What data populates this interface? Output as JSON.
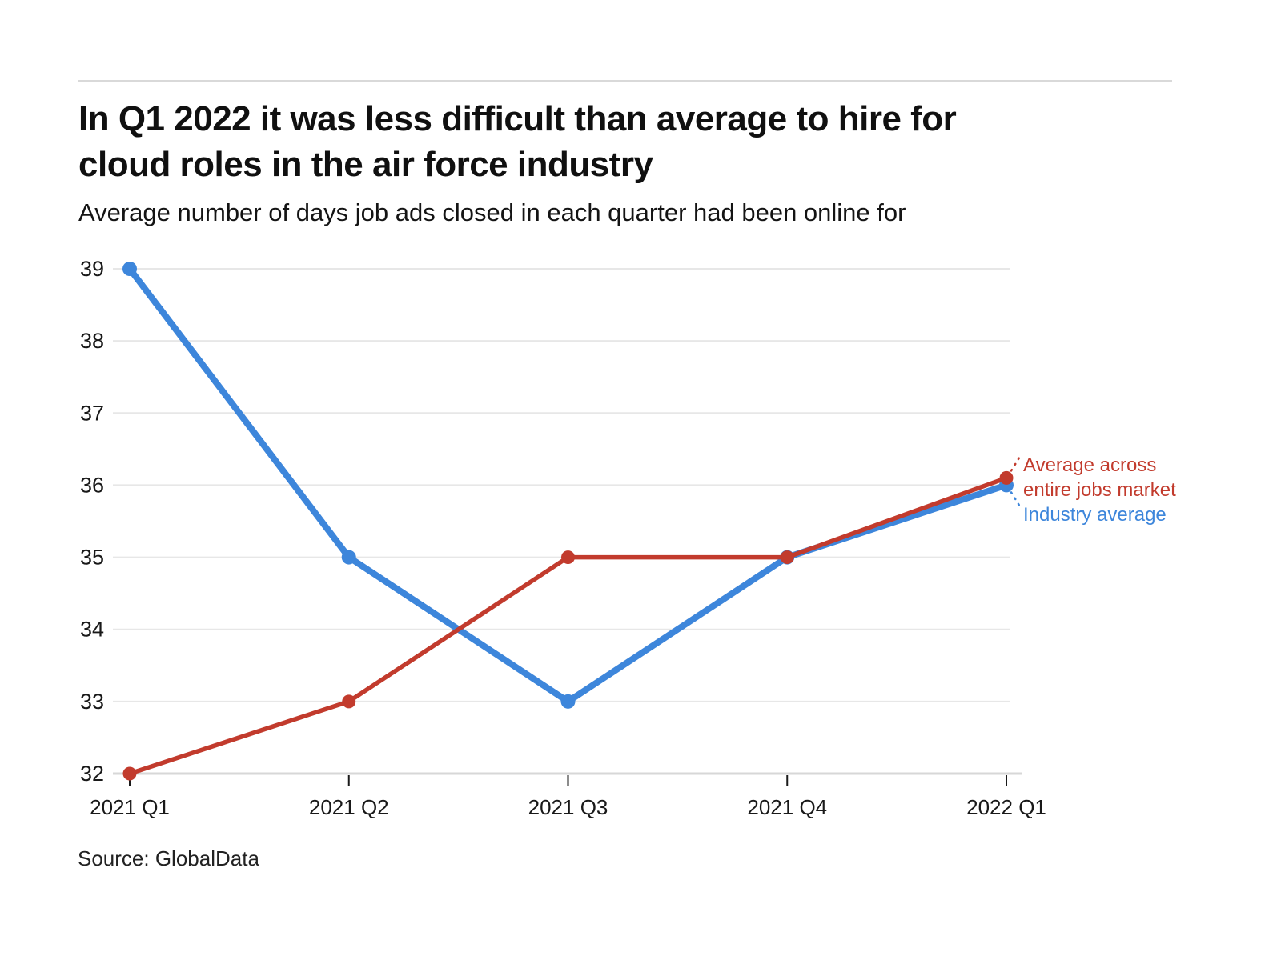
{
  "page": {
    "title_line1": "In Q1 2022 it was less difficult than average to hire for",
    "title_line2": "cloud roles in the air force industry",
    "subtitle": "Average number of days job ads closed in each quarter had been online for",
    "source": "Source: GlobalData"
  },
  "chart_data": {
    "type": "line",
    "title": "In Q1 2022 it was less difficult than average to hire for cloud roles in the air force industry",
    "subtitle": "Average number of days job ads closed in each quarter had been online for",
    "categories": [
      "2021 Q1",
      "2021 Q2",
      "2021 Q3",
      "2021 Q4",
      "2022 Q1"
    ],
    "series": [
      {
        "name": "Industry average",
        "values": [
          39,
          35,
          33,
          35,
          36
        ],
        "color": "#3d86db"
      },
      {
        "name": "Average across entire jobs market",
        "values": [
          32,
          33,
          35,
          35,
          36.1
        ],
        "color": "#c23b2d"
      }
    ],
    "xlabel": "",
    "ylabel": "",
    "ylim": [
      32,
      39
    ],
    "y_ticks": [
      32,
      33,
      34,
      35,
      36,
      37,
      38,
      39
    ],
    "grid": "horizontal",
    "legend_position": "right-annotations",
    "annotations": [
      {
        "series": "Average across entire jobs market",
        "lines": [
          "Average across",
          "entire jobs market"
        ],
        "color": "#c23b2d"
      },
      {
        "series": "Industry average",
        "lines": [
          "Industry average"
        ],
        "color": "#3d86db"
      }
    ],
    "colors": {
      "gridline": "#e7e7e7",
      "axis_baseline": "#d7d7d7",
      "tick_mark": "#1a1a1a",
      "tick_label": "#191919"
    }
  }
}
